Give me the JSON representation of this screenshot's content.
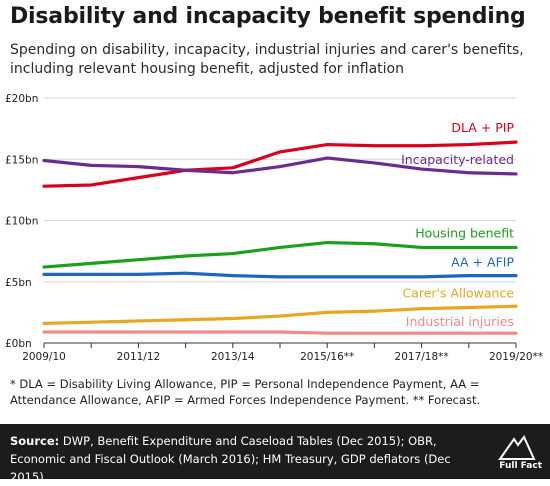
{
  "title": "Disability and incapacity benefit spending",
  "subtitle": "Spending on disability, incapacity, industrial injuries and carer's benefits, including relevant housing benefit, adjusted for inflation",
  "footnote": "* DLA = Disability Living Allowance, PIP = Personal Independence Payment, AA = Attendance Allowance, AFIP = Armed Forces Independence Payment. ** Forecast.",
  "source": {
    "label": "Source:",
    "text": "DWP, Benefit Expenditure and Caseload Tables (Dec 2015); OBR, Economic and Fiscal Outlook (March 2016); HM Treasury, GDP deflators (Dec 2015)"
  },
  "logo": {
    "text": "Full Fact"
  },
  "chart_data": {
    "type": "line",
    "x": [
      "2009/10",
      "2010/11",
      "2011/12",
      "2012/13",
      "2013/14",
      "2014/15",
      "2015/16**",
      "2016/17**",
      "2017/18**",
      "2018/19**",
      "2019/20**"
    ],
    "x_tick_labels": [
      "2009/10",
      "2011/12",
      "2013/14",
      "2015/16**",
      "2017/18**",
      "2019/20**"
    ],
    "y_tick_labels": [
      "£0bn",
      "£5bn",
      "£10bn",
      "£15bn",
      "£20bn"
    ],
    "y_ticks": [
      0,
      5,
      10,
      15,
      20
    ],
    "ylim": [
      0,
      20
    ],
    "ylabel": "",
    "xlabel": "",
    "grid": "horizontal",
    "series": [
      {
        "name": "DLA + PIP",
        "color": "#d9001b",
        "values": [
          12.8,
          12.9,
          13.5,
          14.1,
          14.3,
          15.6,
          16.2,
          16.1,
          16.1,
          16.2,
          16.4
        ]
      },
      {
        "name": "Incapacity-related",
        "color": "#6a2c8f",
        "values": [
          14.9,
          14.5,
          14.4,
          14.1,
          13.9,
          14.4,
          15.1,
          14.7,
          14.2,
          13.9,
          13.8
        ]
      },
      {
        "name": "Housing benefit",
        "color": "#1aa01a",
        "values": [
          6.2,
          6.5,
          6.8,
          7.1,
          7.3,
          7.8,
          8.2,
          8.1,
          7.8,
          7.8,
          7.8
        ]
      },
      {
        "name": "AA + AFIP",
        "color": "#1a66c2",
        "values": [
          5.6,
          5.6,
          5.6,
          5.7,
          5.5,
          5.4,
          5.4,
          5.4,
          5.4,
          5.5,
          5.5
        ]
      },
      {
        "name": "Carer's Allowance",
        "color": "#e8a720",
        "values": [
          1.6,
          1.7,
          1.8,
          1.9,
          2.0,
          2.2,
          2.5,
          2.6,
          2.8,
          2.9,
          3.0
        ]
      },
      {
        "name": "Industrial injuries",
        "color": "#f08a8a",
        "values": [
          0.9,
          0.9,
          0.9,
          0.9,
          0.9,
          0.9,
          0.8,
          0.8,
          0.8,
          0.8,
          0.8
        ]
      }
    ]
  }
}
